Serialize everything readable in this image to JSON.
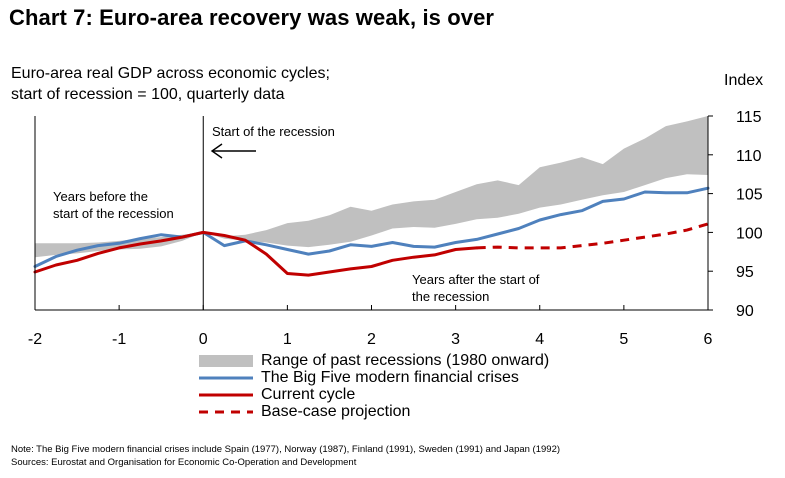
{
  "header": {
    "title": "Chart 7: Euro-area recovery was weak, is over",
    "subtitle_line1": "Euro-area real GDP across economic cycles;",
    "subtitle_line2": "start of recession = 100, quarterly data",
    "unit": "Index"
  },
  "annotations": {
    "start": "Start of the recession",
    "before_line1": "Years before the",
    "before_line2": "start of the recession",
    "after_line1": "Years after the start of",
    "after_line2": "the recession"
  },
  "legend": {
    "range": "Range of past recessions (1980 onward)",
    "big_five": "The Big Five modern financial crises",
    "current": "Current cycle",
    "projection": "Base-case projection"
  },
  "footer": {
    "note": "Note: The Big Five modern financial crises include Spain (1977), Norway (1987), Finland (1991), Sweden (1991) and Japan (1992)",
    "sources": "Sources: Eurostat and Organisation for Economic Co-Operation and Development"
  },
  "colors": {
    "range": "#c0c0c0",
    "big_five": "#4f81bd",
    "current": "#c00000",
    "projection": "#c00000"
  },
  "chart_data": {
    "type": "line",
    "title": "Chart 7: Euro-area recovery was weak, is over",
    "xlabel": "",
    "ylabel": "Index",
    "xlim": [
      -2,
      6
    ],
    "ylim": [
      90,
      115
    ],
    "x_ticks": [
      "-2",
      "-1",
      "0",
      "1",
      "2",
      "3",
      "4",
      "5",
      "6"
    ],
    "y_ticks": [
      "90",
      "95",
      "100",
      "105",
      "110",
      "115"
    ],
    "y_axis_side": "right",
    "grid": false,
    "legend_position": "bottom",
    "band": {
      "name": "Range of past recessions (1980 onward)",
      "x": [
        -2,
        -1.75,
        -1.5,
        -1.25,
        -1,
        -0.75,
        -0.5,
        -0.25,
        0,
        0.25,
        0.5,
        0.75,
        1,
        1.25,
        1.5,
        1.75,
        2,
        2.25,
        2.5,
        2.75,
        3,
        3.25,
        3.5,
        3.75,
        4,
        4.25,
        4.5,
        4.75,
        5,
        5.25,
        5.5,
        5.75,
        6
      ],
      "upper": [
        98.6,
        98.6,
        98.6,
        98.7,
        98.9,
        99.2,
        99.4,
        99.7,
        100,
        99.5,
        99.7,
        100.3,
        101.2,
        101.5,
        102.2,
        103.3,
        102.8,
        103.6,
        104,
        104.2,
        105.2,
        106.2,
        106.7,
        106.1,
        108.4,
        109,
        109.7,
        108.8,
        110.8,
        112.1,
        113.7,
        114.3,
        115
      ],
      "lower": [
        96.8,
        97.1,
        97.3,
        97.6,
        97.8,
        97.9,
        98.2,
        98.9,
        100,
        99.2,
        98.9,
        98.7,
        98.3,
        98.1,
        98.4,
        98.8,
        99.6,
        100.5,
        100.7,
        100.6,
        101.1,
        101.7,
        101.9,
        102.4,
        103.2,
        103.6,
        104.2,
        104.8,
        105.2,
        106.1,
        107,
        107.5,
        107.4
      ]
    },
    "series": [
      {
        "name": "The Big Five modern financial crises",
        "style": "solid",
        "x": [
          -2,
          -1.75,
          -1.5,
          -1.25,
          -1,
          -0.75,
          -0.5,
          -0.25,
          0,
          0.25,
          0.5,
          0.75,
          1,
          1.25,
          1.5,
          1.75,
          2,
          2.25,
          2.5,
          2.75,
          3,
          3.25,
          3.5,
          3.75,
          4,
          4.25,
          4.5,
          4.75,
          5,
          5.25,
          5.5,
          5.75,
          6
        ],
        "values": [
          95.6,
          96.9,
          97.7,
          98.3,
          98.6,
          99.2,
          99.7,
          99.4,
          100,
          98.3,
          98.9,
          98.4,
          97.8,
          97.2,
          97.6,
          98.4,
          98.2,
          98.7,
          98.2,
          98.1,
          98.7,
          99.1,
          99.8,
          100.5,
          101.6,
          102.3,
          102.8,
          104,
          104.3,
          105.2,
          105.1,
          105.1,
          105.7
        ]
      },
      {
        "name": "Current cycle",
        "style": "solid",
        "x": [
          -2,
          -1.75,
          -1.5,
          -1.25,
          -1,
          -0.75,
          -0.5,
          -0.25,
          0,
          0.25,
          0.5,
          0.75,
          1,
          1.25,
          1.5,
          1.75,
          2,
          2.25,
          2.5,
          2.75,
          3,
          3.25
        ],
        "values": [
          94.9,
          95.8,
          96.4,
          97.3,
          98,
          98.5,
          98.9,
          99.4,
          100,
          99.6,
          99,
          97.2,
          94.7,
          94.5,
          94.9,
          95.3,
          95.6,
          96.4,
          96.8,
          97.1,
          97.8,
          98
        ]
      },
      {
        "name": "Base-case projection",
        "style": "dashed",
        "x": [
          3.25,
          3.5,
          3.75,
          4,
          4.25,
          4.5,
          4.75,
          5,
          5.25,
          5.5,
          5.75,
          6
        ],
        "values": [
          98,
          98.1,
          98,
          98,
          98,
          98.3,
          98.6,
          99,
          99.4,
          99.8,
          100.3,
          101.1
        ]
      }
    ]
  }
}
